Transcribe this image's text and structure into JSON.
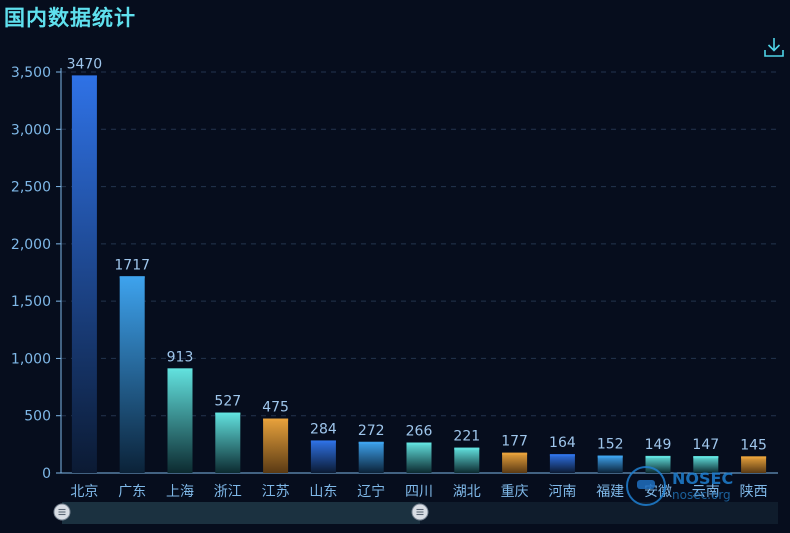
{
  "header": {
    "title": "国内数据统计"
  },
  "toolbar": {
    "download_icon": "download-icon"
  },
  "watermark": {
    "brand": "NOSEC",
    "site": "nosec.org"
  },
  "colors": {
    "background": "#060d1d",
    "title": "#5fe0ee",
    "axis": "#7fb8e8",
    "blue": "#2e6fe0",
    "skyblue": "#3a9ae8",
    "cyan": "#5ad8da",
    "orange": "#e39a3a",
    "slider_track": "#1a2a3a"
  },
  "chart_data": {
    "type": "bar",
    "categories": [
      "北京",
      "广东",
      "上海",
      "浙江",
      "江苏",
      "山东",
      "辽宁",
      "四川",
      "湖北",
      "重庆",
      "河南",
      "福建",
      "安徽",
      "云南",
      "陕西"
    ],
    "values": [
      3470,
      1717,
      913,
      527,
      475,
      284,
      272,
      266,
      221,
      177,
      164,
      152,
      149,
      147,
      145
    ],
    "bar_colors": [
      "blue",
      "skyblue",
      "cyan",
      "cyan",
      "orange",
      "blue",
      "skyblue",
      "cyan",
      "cyan",
      "orange",
      "blue",
      "skyblue",
      "cyan",
      "cyan",
      "orange"
    ],
    "y_ticks": [
      "0",
      "500",
      "1,000",
      "1,500",
      "2,000",
      "2,500",
      "3,000",
      "3,500"
    ],
    "ylim": [
      0,
      3500
    ],
    "grid": true,
    "data_zoom": {
      "start": 0,
      "end": 0.5
    }
  }
}
